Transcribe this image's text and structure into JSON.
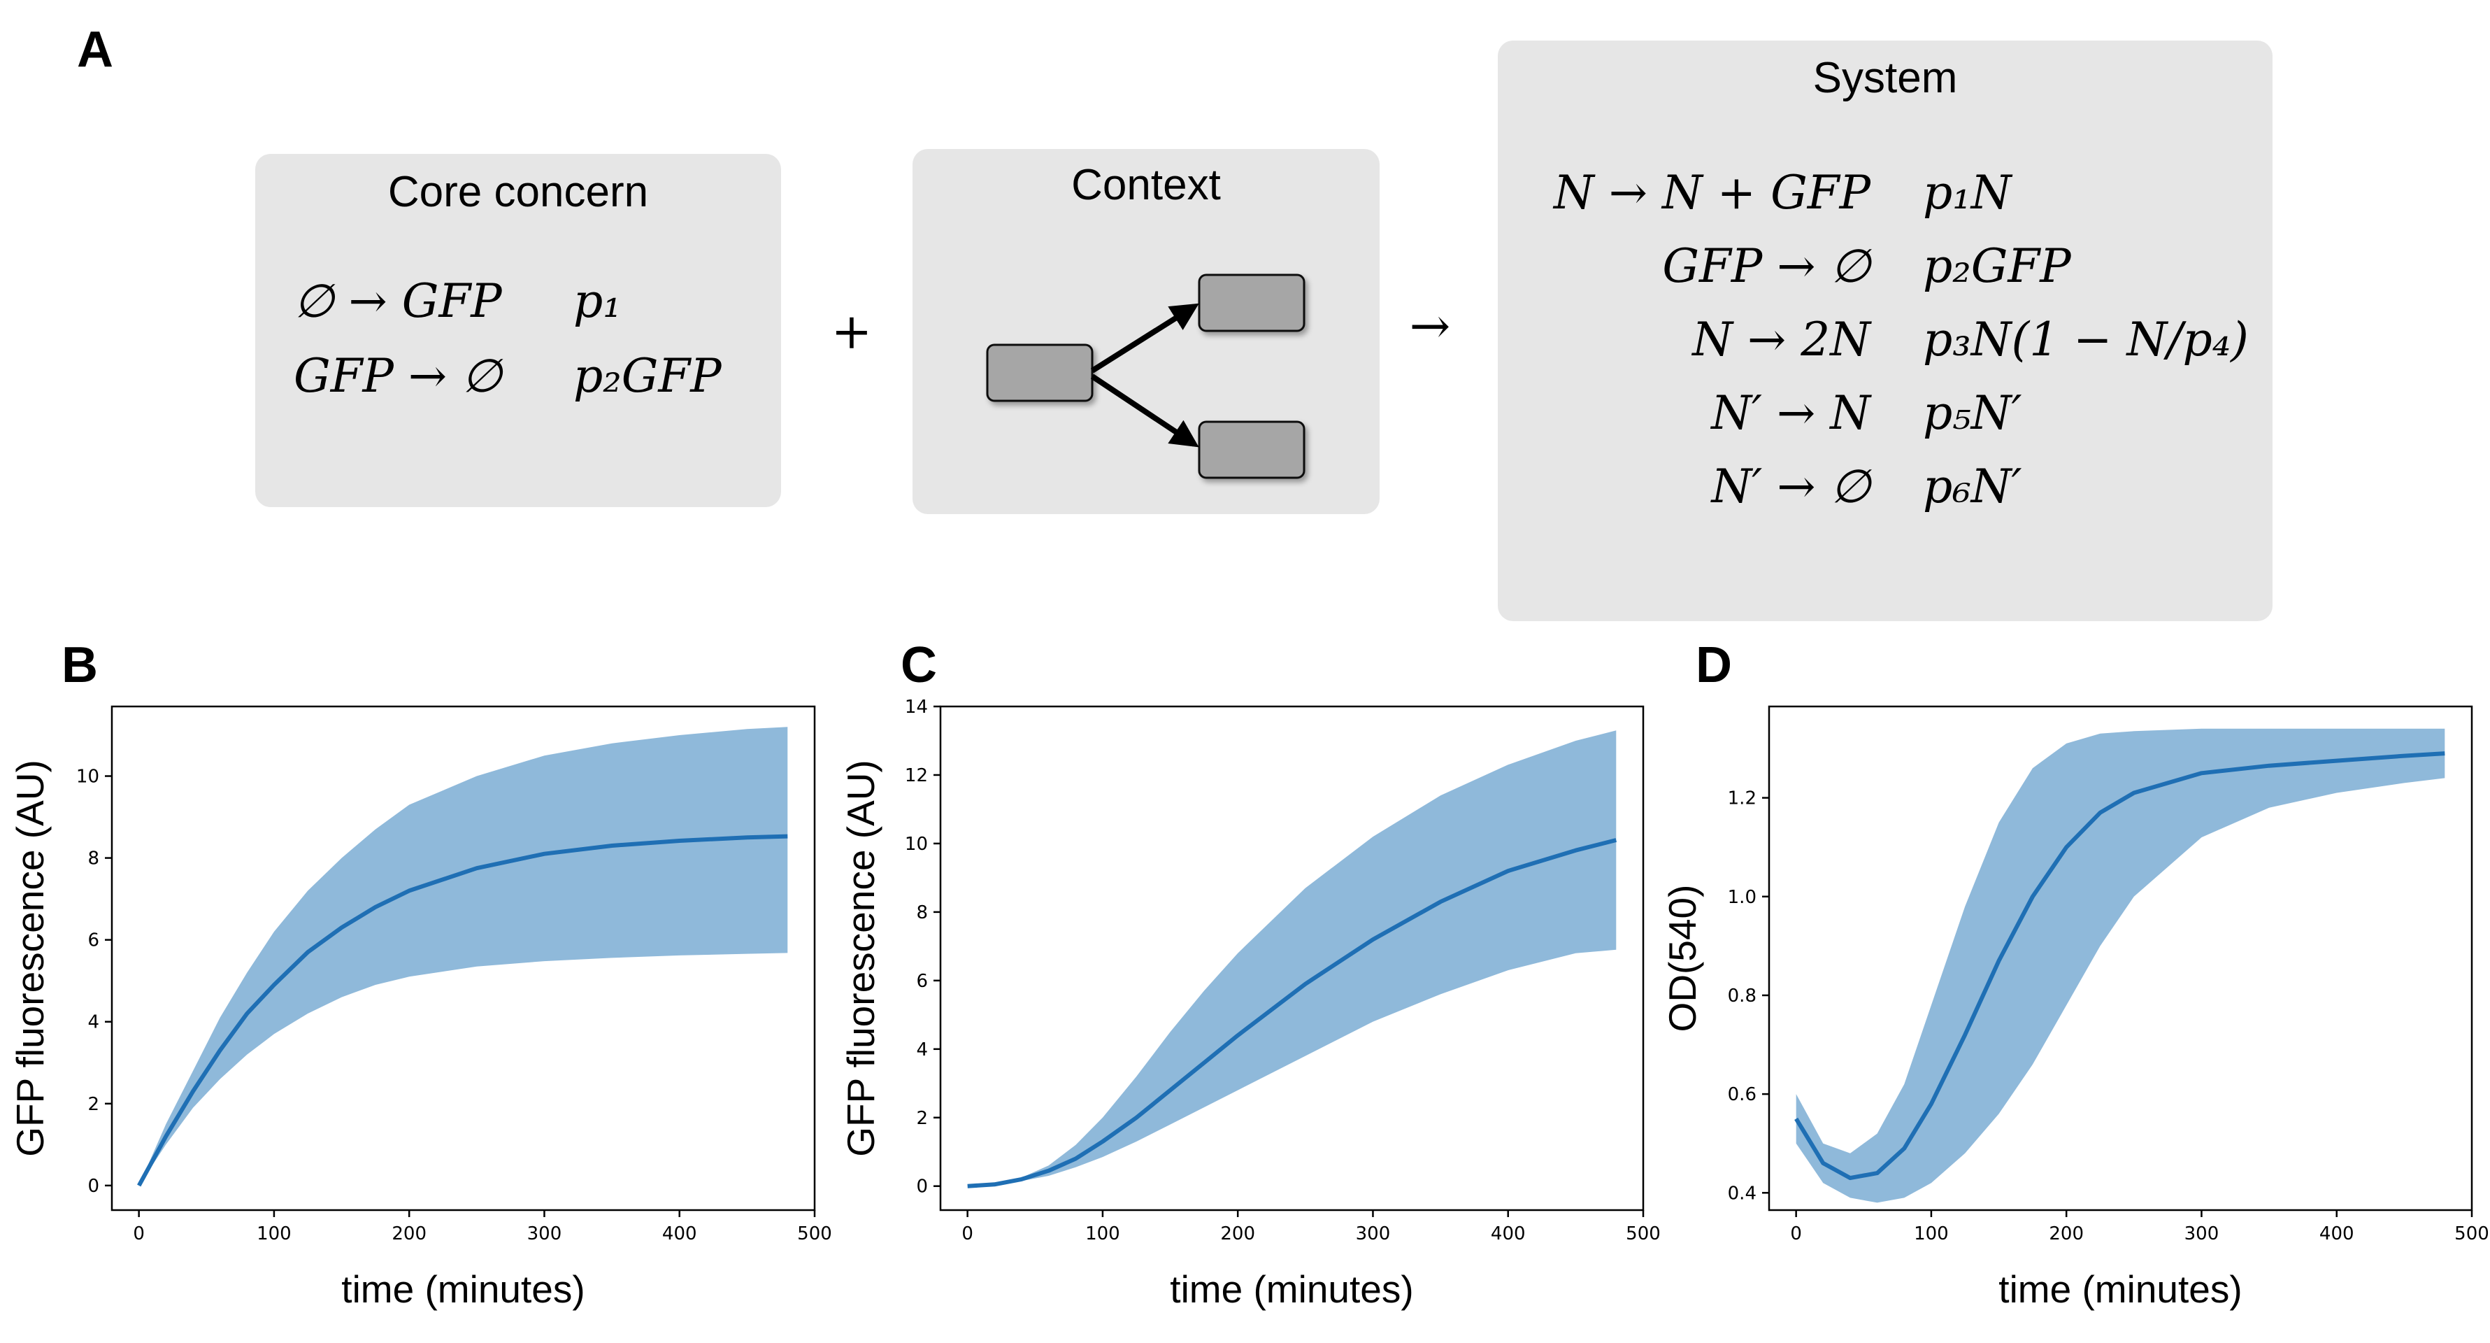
{
  "panel_letters": {
    "a": "A",
    "b": "B",
    "c": "C",
    "d": "D"
  },
  "core_box": {
    "title": "Core concern",
    "reactions": [
      {
        "reaction": "∅ → GFP",
        "rate": "p₁"
      },
      {
        "reaction": "GFP → ∅",
        "rate": "p₂GFP"
      }
    ]
  },
  "context_box": {
    "title": "Context"
  },
  "operators": {
    "plus": "+",
    "arrow": "→"
  },
  "system_box": {
    "title": "System",
    "reactions": [
      {
        "reaction": "N → N + GFP",
        "rate": "p₁N"
      },
      {
        "reaction": "GFP → ∅",
        "rate": "p₂GFP"
      },
      {
        "reaction": "N → 2N",
        "rate": "p₃N(1 − N/p₄)"
      },
      {
        "reaction": "N′ → N",
        "rate": "p₅N′"
      },
      {
        "reaction": "N′ → ∅",
        "rate": "p₆N′"
      }
    ]
  },
  "colors": {
    "line": "#1f6fb4",
    "band": "#8fb9da",
    "box": "#e6e6e6",
    "node": "#a6a6a6"
  },
  "chart_data": [
    {
      "type": "line",
      "panel": "B",
      "xlabel": "time (minutes)",
      "ylabel": "GFP fluorescence (AU)",
      "xlim": [
        -20,
        500
      ],
      "ylim": [
        -0.6,
        11.7
      ],
      "xticks": [
        0,
        100,
        200,
        300,
        400,
        500
      ],
      "yticks": [
        0,
        2,
        4,
        6,
        8,
        10
      ],
      "x": [
        0,
        20,
        40,
        60,
        80,
        100,
        125,
        150,
        175,
        200,
        250,
        300,
        350,
        400,
        450,
        480
      ],
      "mean": [
        0,
        1.2,
        2.3,
        3.3,
        4.2,
        4.9,
        5.7,
        6.3,
        6.8,
        7.2,
        7.75,
        8.1,
        8.3,
        8.42,
        8.5,
        8.53
      ],
      "lower": [
        0,
        1.0,
        1.9,
        2.6,
        3.2,
        3.7,
        4.2,
        4.6,
        4.9,
        5.1,
        5.35,
        5.48,
        5.56,
        5.62,
        5.66,
        5.68
      ],
      "upper": [
        0,
        1.5,
        2.8,
        4.1,
        5.2,
        6.2,
        7.2,
        8.0,
        8.7,
        9.3,
        10.0,
        10.5,
        10.8,
        11.0,
        11.15,
        11.2
      ]
    },
    {
      "type": "line",
      "panel": "C",
      "xlabel": "time (minutes)",
      "ylabel": "GFP fluorescence (AU)",
      "xlim": [
        -20,
        500
      ],
      "ylim": [
        -0.7,
        14
      ],
      "xticks": [
        0,
        100,
        200,
        300,
        400,
        500
      ],
      "yticks": [
        0,
        2,
        4,
        6,
        8,
        10,
        12,
        14
      ],
      "x": [
        0,
        20,
        40,
        60,
        80,
        100,
        125,
        150,
        175,
        200,
        250,
        300,
        350,
        400,
        450,
        480
      ],
      "mean": [
        0,
        0.05,
        0.2,
        0.45,
        0.8,
        1.3,
        2.0,
        2.8,
        3.6,
        4.4,
        5.9,
        7.2,
        8.3,
        9.2,
        9.8,
        10.1
      ],
      "lower": [
        0,
        0.04,
        0.15,
        0.3,
        0.55,
        0.85,
        1.3,
        1.8,
        2.3,
        2.8,
        3.8,
        4.8,
        5.6,
        6.3,
        6.8,
        6.9
      ],
      "upper": [
        0,
        0.06,
        0.25,
        0.6,
        1.2,
        2.0,
        3.2,
        4.5,
        5.7,
        6.8,
        8.7,
        10.2,
        11.4,
        12.3,
        13.0,
        13.3
      ]
    },
    {
      "type": "line",
      "panel": "D",
      "xlabel": "time (minutes)",
      "ylabel": "OD(540)",
      "xlim": [
        -20,
        500
      ],
      "ylim": [
        0.365,
        1.385
      ],
      "xticks": [
        0,
        100,
        200,
        300,
        400,
        500
      ],
      "yticks": [
        0.4,
        0.6,
        0.8,
        1.0,
        1.2
      ],
      "x": [
        0,
        20,
        40,
        60,
        80,
        100,
        125,
        150,
        175,
        200,
        225,
        250,
        300,
        350,
        400,
        450,
        480
      ],
      "mean": [
        0.55,
        0.46,
        0.43,
        0.44,
        0.49,
        0.58,
        0.72,
        0.87,
        1.0,
        1.1,
        1.17,
        1.21,
        1.25,
        1.265,
        1.275,
        1.285,
        1.29
      ],
      "lower": [
        0.5,
        0.42,
        0.39,
        0.38,
        0.39,
        0.42,
        0.48,
        0.56,
        0.66,
        0.78,
        0.9,
        1.0,
        1.12,
        1.18,
        1.21,
        1.23,
        1.24
      ],
      "upper": [
        0.6,
        0.5,
        0.48,
        0.52,
        0.62,
        0.78,
        0.98,
        1.15,
        1.26,
        1.31,
        1.33,
        1.335,
        1.34,
        1.34,
        1.34,
        1.34,
        1.34
      ]
    }
  ]
}
